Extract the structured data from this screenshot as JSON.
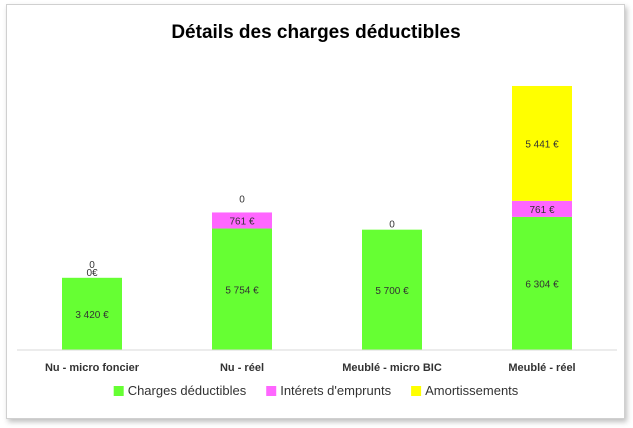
{
  "chart_data": {
    "type": "bar",
    "stacked": true,
    "title": "Détails des charges déductibles",
    "categories": [
      "Nu - micro foncier",
      "Nu - réel",
      "Meublé - micro BIC",
      "Meublé - réel"
    ],
    "series": [
      {
        "name": "Charges déductibles",
        "color": "#66ff33",
        "values": [
          3420,
          5754,
          5700,
          6304
        ],
        "labels": [
          "3 420 €",
          "5 754 €",
          "5 700 €",
          "6 304 €"
        ]
      },
      {
        "name": "Intérets d'emprunts",
        "color": "#ff66ff",
        "values": [
          0,
          761,
          0,
          761
        ],
        "labels": [
          "0€",
          "761 €",
          "0",
          "761 €"
        ]
      },
      {
        "name": "Amortissements",
        "color": "#ffff00",
        "values": [
          0,
          0,
          0,
          5441
        ],
        "labels": [
          "0",
          "0",
          "",
          "5 441 €"
        ]
      }
    ],
    "ylim": [
      0,
      13500
    ],
    "grid": false,
    "legend": "bottom"
  }
}
